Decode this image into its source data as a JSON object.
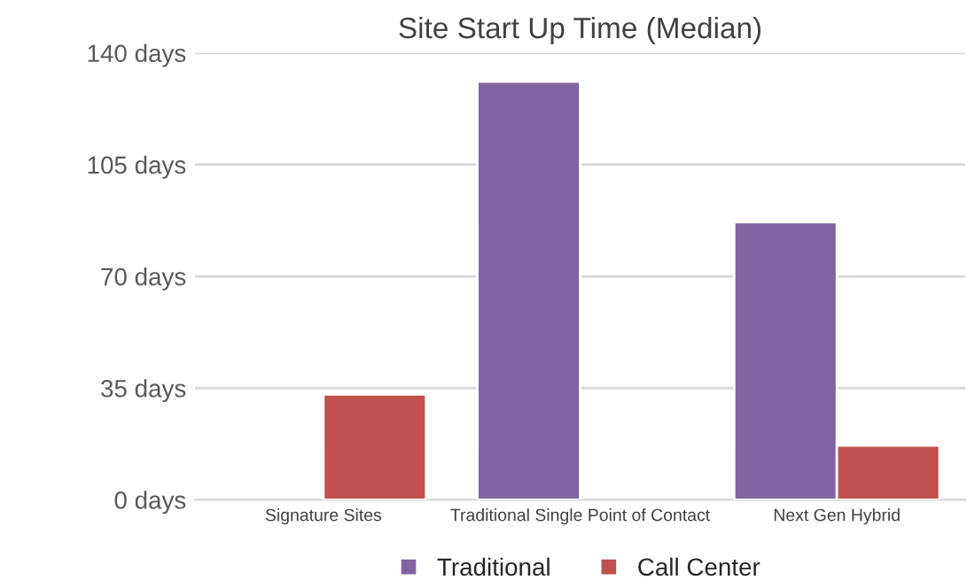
{
  "chart_data": {
    "type": "bar",
    "title": "Site Start Up Time (Median)",
    "categories": [
      "Signature Sites",
      "Traditional Single Point of Contact",
      "Next Gen Hybrid"
    ],
    "series": [
      {
        "name": "Traditional",
        "color": "#8064a2",
        "values": [
          null,
          131,
          87
        ]
      },
      {
        "name": "Call Center",
        "color": "#c0504d",
        "values": [
          33,
          null,
          17
        ]
      }
    ],
    "ylim": [
      0,
      140
    ],
    "yticks": [
      {
        "value": 0,
        "label": "0 days"
      },
      {
        "value": 35,
        "label": "35 days"
      },
      {
        "value": 70,
        "label": "70 days"
      },
      {
        "value": 105,
        "label": "105 days"
      },
      {
        "value": 140,
        "label": "140 days"
      }
    ],
    "grid": "y",
    "legend": "bottom"
  }
}
